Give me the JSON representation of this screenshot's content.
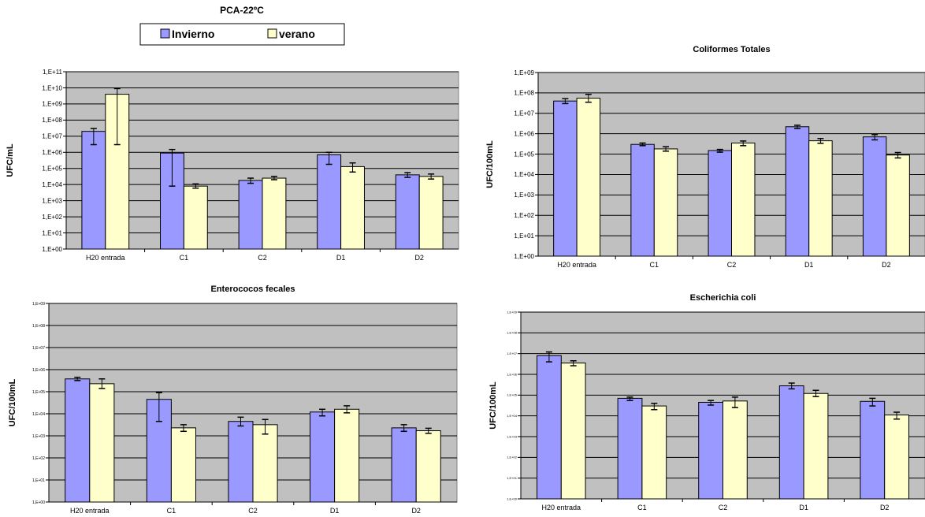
{
  "legend": {
    "title": "PCA-22ºC",
    "entries": [
      {
        "label": "Invierno",
        "color": "#9999ff"
      },
      {
        "label": "verano",
        "color": "#ffffcc"
      }
    ]
  },
  "colors": {
    "plot_bg": "#c0c0c0",
    "bar_edge": "#000000"
  },
  "chart_data": [
    {
      "type": "bar",
      "title": "",
      "ylabel": "UFC/mL",
      "categories": [
        "H20 entrada",
        "C1",
        "C2",
        "D1",
        "D2"
      ],
      "yscale": "log",
      "ylim": [
        1,
        100000000000.0
      ],
      "yticks": [
        "1,E+00",
        "1,E+01",
        "1,E+02",
        "1,E+03",
        "1,E+04",
        "1,E+05",
        "1,E+06",
        "1,E+07",
        "1,E+08",
        "1,E+09",
        "1,E+10",
        "1,E+11"
      ],
      "series": [
        {
          "name": "Invierno",
          "values": [
            20000000,
            900000,
            18000,
            700000,
            40000
          ],
          "err_low": [
            3000000,
            8000,
            12000,
            180000,
            28000
          ],
          "err_high": [
            30000000,
            1500000,
            25000,
            1000000,
            55000
          ]
        },
        {
          "name": "verano",
          "values": [
            4000000000,
            8000,
            25000,
            130000,
            32000
          ],
          "err_low": [
            3000000,
            6000,
            20000,
            60000,
            22000
          ],
          "err_high": [
            9000000000,
            11000,
            32000,
            220000,
            45000
          ]
        }
      ]
    },
    {
      "type": "bar",
      "title": "Coliformes Totales",
      "ylabel": "UFC/100mL",
      "categories": [
        "H20 entrada",
        "C1",
        "C2",
        "D1",
        "D2"
      ],
      "yscale": "log",
      "ylim": [
        1,
        1000000000.0
      ],
      "yticks": [
        "1,E+00",
        "1,E+01",
        "1,E+02",
        "1,E+03",
        "1,E+04",
        "1,E+05",
        "1,E+06",
        "1,E+07",
        "1,E+08",
        "1,E+09"
      ],
      "series": [
        {
          "name": "Invierno",
          "values": [
            40000000,
            300000,
            150000,
            2200000,
            700000
          ],
          "err_low": [
            30000000,
            260000,
            125000,
            1800000,
            500000
          ],
          "err_high": [
            52000000,
            350000,
            170000,
            2600000,
            900000
          ]
        },
        {
          "name": "verano",
          "values": [
            55000000,
            180000,
            350000,
            450000,
            90000
          ],
          "err_low": [
            35000000,
            140000,
            260000,
            340000,
            65000
          ],
          "err_high": [
            85000000,
            230000,
            440000,
            580000,
            120000
          ]
        }
      ]
    },
    {
      "type": "bar",
      "title": "Enterococos fecales",
      "ylabel": "UFC/100mL",
      "categories": [
        "H20 entrada",
        "C1",
        "C2",
        "D1",
        "D2"
      ],
      "yscale": "log",
      "ylim": [
        1,
        1000000000.0
      ],
      "yticks": [
        "1,E+00",
        "1,E+01",
        "1,E+02",
        "1,E+03",
        "1,E+04",
        "1,E+05",
        "1,E+06",
        "1,E+07",
        "1,E+08",
        "1,E+09"
      ],
      "series": [
        {
          "name": "Invierno",
          "values": [
            380000,
            45000,
            4500,
            12000,
            2300
          ],
          "err_low": [
            320000,
            4500,
            2800,
            8000,
            1600
          ],
          "err_high": [
            450000,
            90000,
            7000,
            16000,
            3200
          ]
        },
        {
          "name": "verano",
          "values": [
            230000,
            2300,
            3200,
            16000,
            1700
          ],
          "err_low": [
            140000,
            1600,
            1200,
            11000,
            1300
          ],
          "err_high": [
            380000,
            3200,
            5500,
            23000,
            2200
          ]
        }
      ]
    },
    {
      "type": "bar",
      "title": "Escherichia coli",
      "ylabel": "UFC/100mL",
      "categories": [
        "H20 entrada",
        "C1",
        "C2",
        "D1",
        "D2"
      ],
      "yscale": "log",
      "ylim": [
        1,
        1000000000.0
      ],
      "yticks": [
        "1,E+00",
        "1,E+01",
        "1,E+02",
        "1,E+03",
        "1,E+04",
        "1,E+05",
        "1,E+06",
        "1,E+07",
        "1,E+08",
        "1,E+09"
      ],
      "series": [
        {
          "name": "Invierno",
          "values": [
            8000000,
            70000,
            45000,
            280000,
            50000
          ],
          "err_low": [
            4000000,
            55000,
            33000,
            200000,
            30000
          ],
          "err_high": [
            12000000,
            80000,
            55000,
            380000,
            70000
          ]
        },
        {
          "name": "verano",
          "values": [
            3500000,
            30000,
            52000,
            120000,
            11000
          ],
          "err_low": [
            2600000,
            20000,
            25000,
            85000,
            7000
          ],
          "err_high": [
            4500000,
            40000,
            80000,
            170000,
            15000
          ]
        }
      ]
    }
  ]
}
